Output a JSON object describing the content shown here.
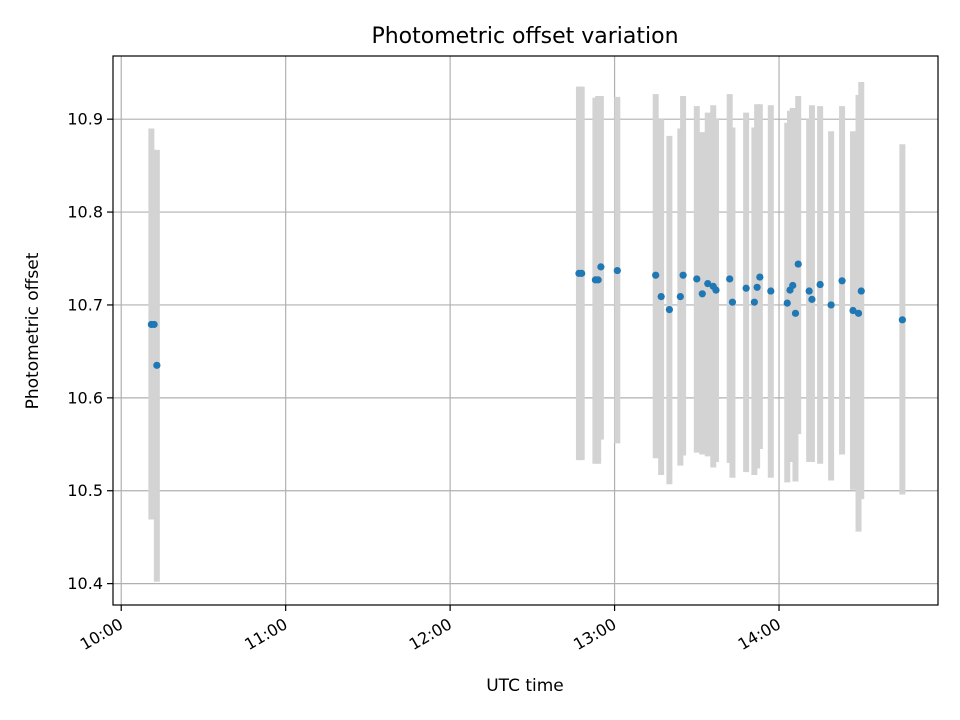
{
  "chart_data": {
    "type": "scatter",
    "title": "Photometric offset variation",
    "xlabel": "UTC time",
    "ylabel": "Photometric offset",
    "x_ticks": [
      "10:00",
      "11:00",
      "12:00",
      "13:00",
      "14:00"
    ],
    "y_ticks": [
      "10.4",
      "10.5",
      "10.6",
      "10.7",
      "10.8",
      "10.9"
    ],
    "xlim": [
      "09:57",
      "14:58"
    ],
    "ylim": [
      10.377,
      10.968
    ],
    "grid": true,
    "colors": {
      "point": "#1f77b4",
      "errorbar": "#d3d3d3",
      "grid": "#b0b0b0"
    },
    "points": [
      {
        "x": "10:11",
        "y": 10.679,
        "lo": 10.469,
        "hi": 10.89
      },
      {
        "x": "10:12",
        "y": 10.679,
        "lo": 10.48,
        "hi": 10.867
      },
      {
        "x": "10:13",
        "y": 10.635,
        "lo": 10.402,
        "hi": 10.867
      },
      {
        "x": "12:47",
        "y": 10.734,
        "lo": 10.533,
        "hi": 10.935
      },
      {
        "x": "12:48",
        "y": 10.734,
        "lo": 10.533,
        "hi": 10.935
      },
      {
        "x": "12:53",
        "y": 10.727,
        "lo": 10.529,
        "hi": 10.923
      },
      {
        "x": "12:54",
        "y": 10.727,
        "lo": 10.529,
        "hi": 10.925
      },
      {
        "x": "12:55",
        "y": 10.741,
        "lo": 10.555,
        "hi": 10.925
      },
      {
        "x": "13:01",
        "y": 10.737,
        "lo": 10.551,
        "hi": 10.924
      },
      {
        "x": "13:15",
        "y": 10.732,
        "lo": 10.535,
        "hi": 10.927
      },
      {
        "x": "13:17",
        "y": 10.709,
        "lo": 10.517,
        "hi": 10.9
      },
      {
        "x": "13:20",
        "y": 10.695,
        "lo": 10.507,
        "hi": 10.882
      },
      {
        "x": "13:24",
        "y": 10.709,
        "lo": 10.527,
        "hi": 10.89
      },
      {
        "x": "13:25",
        "y": 10.732,
        "lo": 10.538,
        "hi": 10.925
      },
      {
        "x": "13:30",
        "y": 10.728,
        "lo": 10.541,
        "hi": 10.914
      },
      {
        "x": "13:32",
        "y": 10.712,
        "lo": 10.539,
        "hi": 10.886
      },
      {
        "x": "13:34",
        "y": 10.723,
        "lo": 10.537,
        "hi": 10.907
      },
      {
        "x": "13:36",
        "y": 10.72,
        "lo": 10.525,
        "hi": 10.915
      },
      {
        "x": "13:37",
        "y": 10.716,
        "lo": 10.531,
        "hi": 10.901
      },
      {
        "x": "13:42",
        "y": 10.728,
        "lo": 10.53,
        "hi": 10.927
      },
      {
        "x": "13:43",
        "y": 10.703,
        "lo": 10.514,
        "hi": 10.891
      },
      {
        "x": "13:48",
        "y": 10.718,
        "lo": 10.52,
        "hi": 10.907
      },
      {
        "x": "13:51",
        "y": 10.703,
        "lo": 10.517,
        "hi": 10.891
      },
      {
        "x": "13:52",
        "y": 10.719,
        "lo": 10.524,
        "hi": 10.916
      },
      {
        "x": "13:53",
        "y": 10.73,
        "lo": 10.545,
        "hi": 10.916
      },
      {
        "x": "13:57",
        "y": 10.715,
        "lo": 10.514,
        "hi": 10.915
      },
      {
        "x": "14:03",
        "y": 10.702,
        "lo": 10.509,
        "hi": 10.896
      },
      {
        "x": "14:04",
        "y": 10.716,
        "lo": 10.534,
        "hi": 10.909
      },
      {
        "x": "14:05",
        "y": 10.721,
        "lo": 10.531,
        "hi": 10.912
      },
      {
        "x": "14:06",
        "y": 10.691,
        "lo": 10.51,
        "hi": 10.871
      },
      {
        "x": "14:07",
        "y": 10.744,
        "lo": 10.561,
        "hi": 10.925
      },
      {
        "x": "14:11",
        "y": 10.715,
        "lo": 10.531,
        "hi": 10.9
      },
      {
        "x": "14:12",
        "y": 10.706,
        "lo": 10.531,
        "hi": 10.915
      },
      {
        "x": "14:15",
        "y": 10.722,
        "lo": 10.529,
        "hi": 10.914
      },
      {
        "x": "14:19",
        "y": 10.7,
        "lo": 10.511,
        "hi": 10.887
      },
      {
        "x": "14:23",
        "y": 10.726,
        "lo": 10.539,
        "hi": 10.914
      },
      {
        "x": "14:27",
        "y": 10.694,
        "lo": 10.501,
        "hi": 10.887
      },
      {
        "x": "14:29",
        "y": 10.691,
        "lo": 10.456,
        "hi": 10.926
      },
      {
        "x": "14:30",
        "y": 10.715,
        "lo": 10.491,
        "hi": 10.94
      },
      {
        "x": "14:45",
        "y": 10.684,
        "lo": 10.496,
        "hi": 10.873
      }
    ]
  }
}
